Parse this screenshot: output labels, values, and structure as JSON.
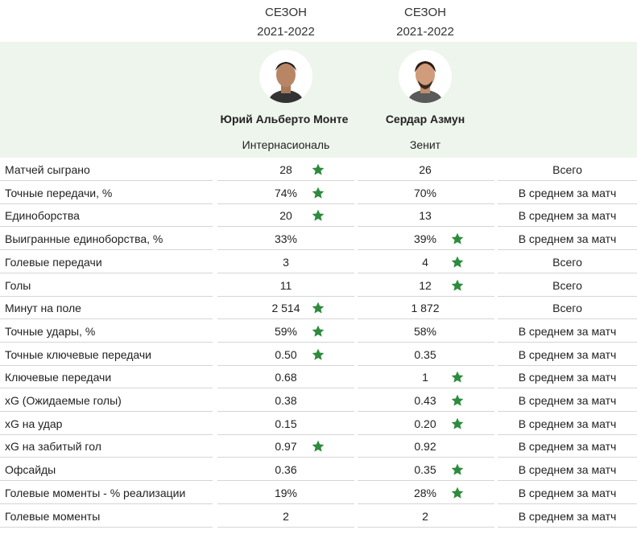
{
  "header": {
    "players": [
      {
        "season_title": "СЕЗОН",
        "season": "2021-2022",
        "name": "Юрий Альберто Монте",
        "team": "Интернасиональ"
      },
      {
        "season_title": "СЕЗОН",
        "season": "2021-2022",
        "name": "Сердар Азмун",
        "team": "Зенит"
      }
    ]
  },
  "table": {
    "star_color": "#2e8b3e",
    "rows": [
      {
        "label": "Матчей сыграно",
        "values": [
          "28",
          "26"
        ],
        "star": [
          true,
          false
        ],
        "type": "Всего"
      },
      {
        "label": "Точные передачи, %",
        "values": [
          "74%",
          "70%"
        ],
        "star": [
          true,
          false
        ],
        "type": "В среднем за матч"
      },
      {
        "label": "Единоборства",
        "values": [
          "20",
          "13"
        ],
        "star": [
          true,
          false
        ],
        "type": "В среднем за матч"
      },
      {
        "label": "Выигранные единоборства, %",
        "values": [
          "33%",
          "39%"
        ],
        "star": [
          false,
          true
        ],
        "type": "В среднем за матч"
      },
      {
        "label": "Голевые передачи",
        "values": [
          "3",
          "4"
        ],
        "star": [
          false,
          true
        ],
        "type": "Всего"
      },
      {
        "label": "Голы",
        "values": [
          "11",
          "12"
        ],
        "star": [
          false,
          true
        ],
        "type": "Всего"
      },
      {
        "label": "Минут на поле",
        "values": [
          "2 514",
          "1 872"
        ],
        "star": [
          true,
          false
        ],
        "type": "Всего"
      },
      {
        "label": "Точные удары, %",
        "values": [
          "59%",
          "58%"
        ],
        "star": [
          true,
          false
        ],
        "type": "В среднем за матч"
      },
      {
        "label": "Точные ключевые передачи",
        "values": [
          "0.50",
          "0.35"
        ],
        "star": [
          true,
          false
        ],
        "type": "В среднем за матч"
      },
      {
        "label": "Ключевые передачи",
        "values": [
          "0.68",
          "1"
        ],
        "star": [
          false,
          true
        ],
        "type": "В среднем за матч"
      },
      {
        "label": "xG (Ожидаемые голы)",
        "values": [
          "0.38",
          "0.43"
        ],
        "star": [
          false,
          true
        ],
        "type": "В среднем за матч"
      },
      {
        "label": "xG на удар",
        "values": [
          "0.15",
          "0.20"
        ],
        "star": [
          false,
          true
        ],
        "type": "В среднем за матч"
      },
      {
        "label": "xG на забитый гол",
        "values": [
          "0.97",
          "0.92"
        ],
        "star": [
          true,
          false
        ],
        "type": "В среднем за матч"
      },
      {
        "label": "Офсайды",
        "values": [
          "0.36",
          "0.35"
        ],
        "star": [
          false,
          true
        ],
        "type": "В среднем за матч"
      },
      {
        "label": "Голевые моменты - % реализации",
        "values": [
          "19%",
          "28%"
        ],
        "star": [
          false,
          true
        ],
        "type": "В среднем за матч"
      },
      {
        "label": "Голевые моменты",
        "values": [
          "2",
          "2"
        ],
        "star": [
          false,
          false
        ],
        "type": "В среднем за матч"
      }
    ]
  }
}
